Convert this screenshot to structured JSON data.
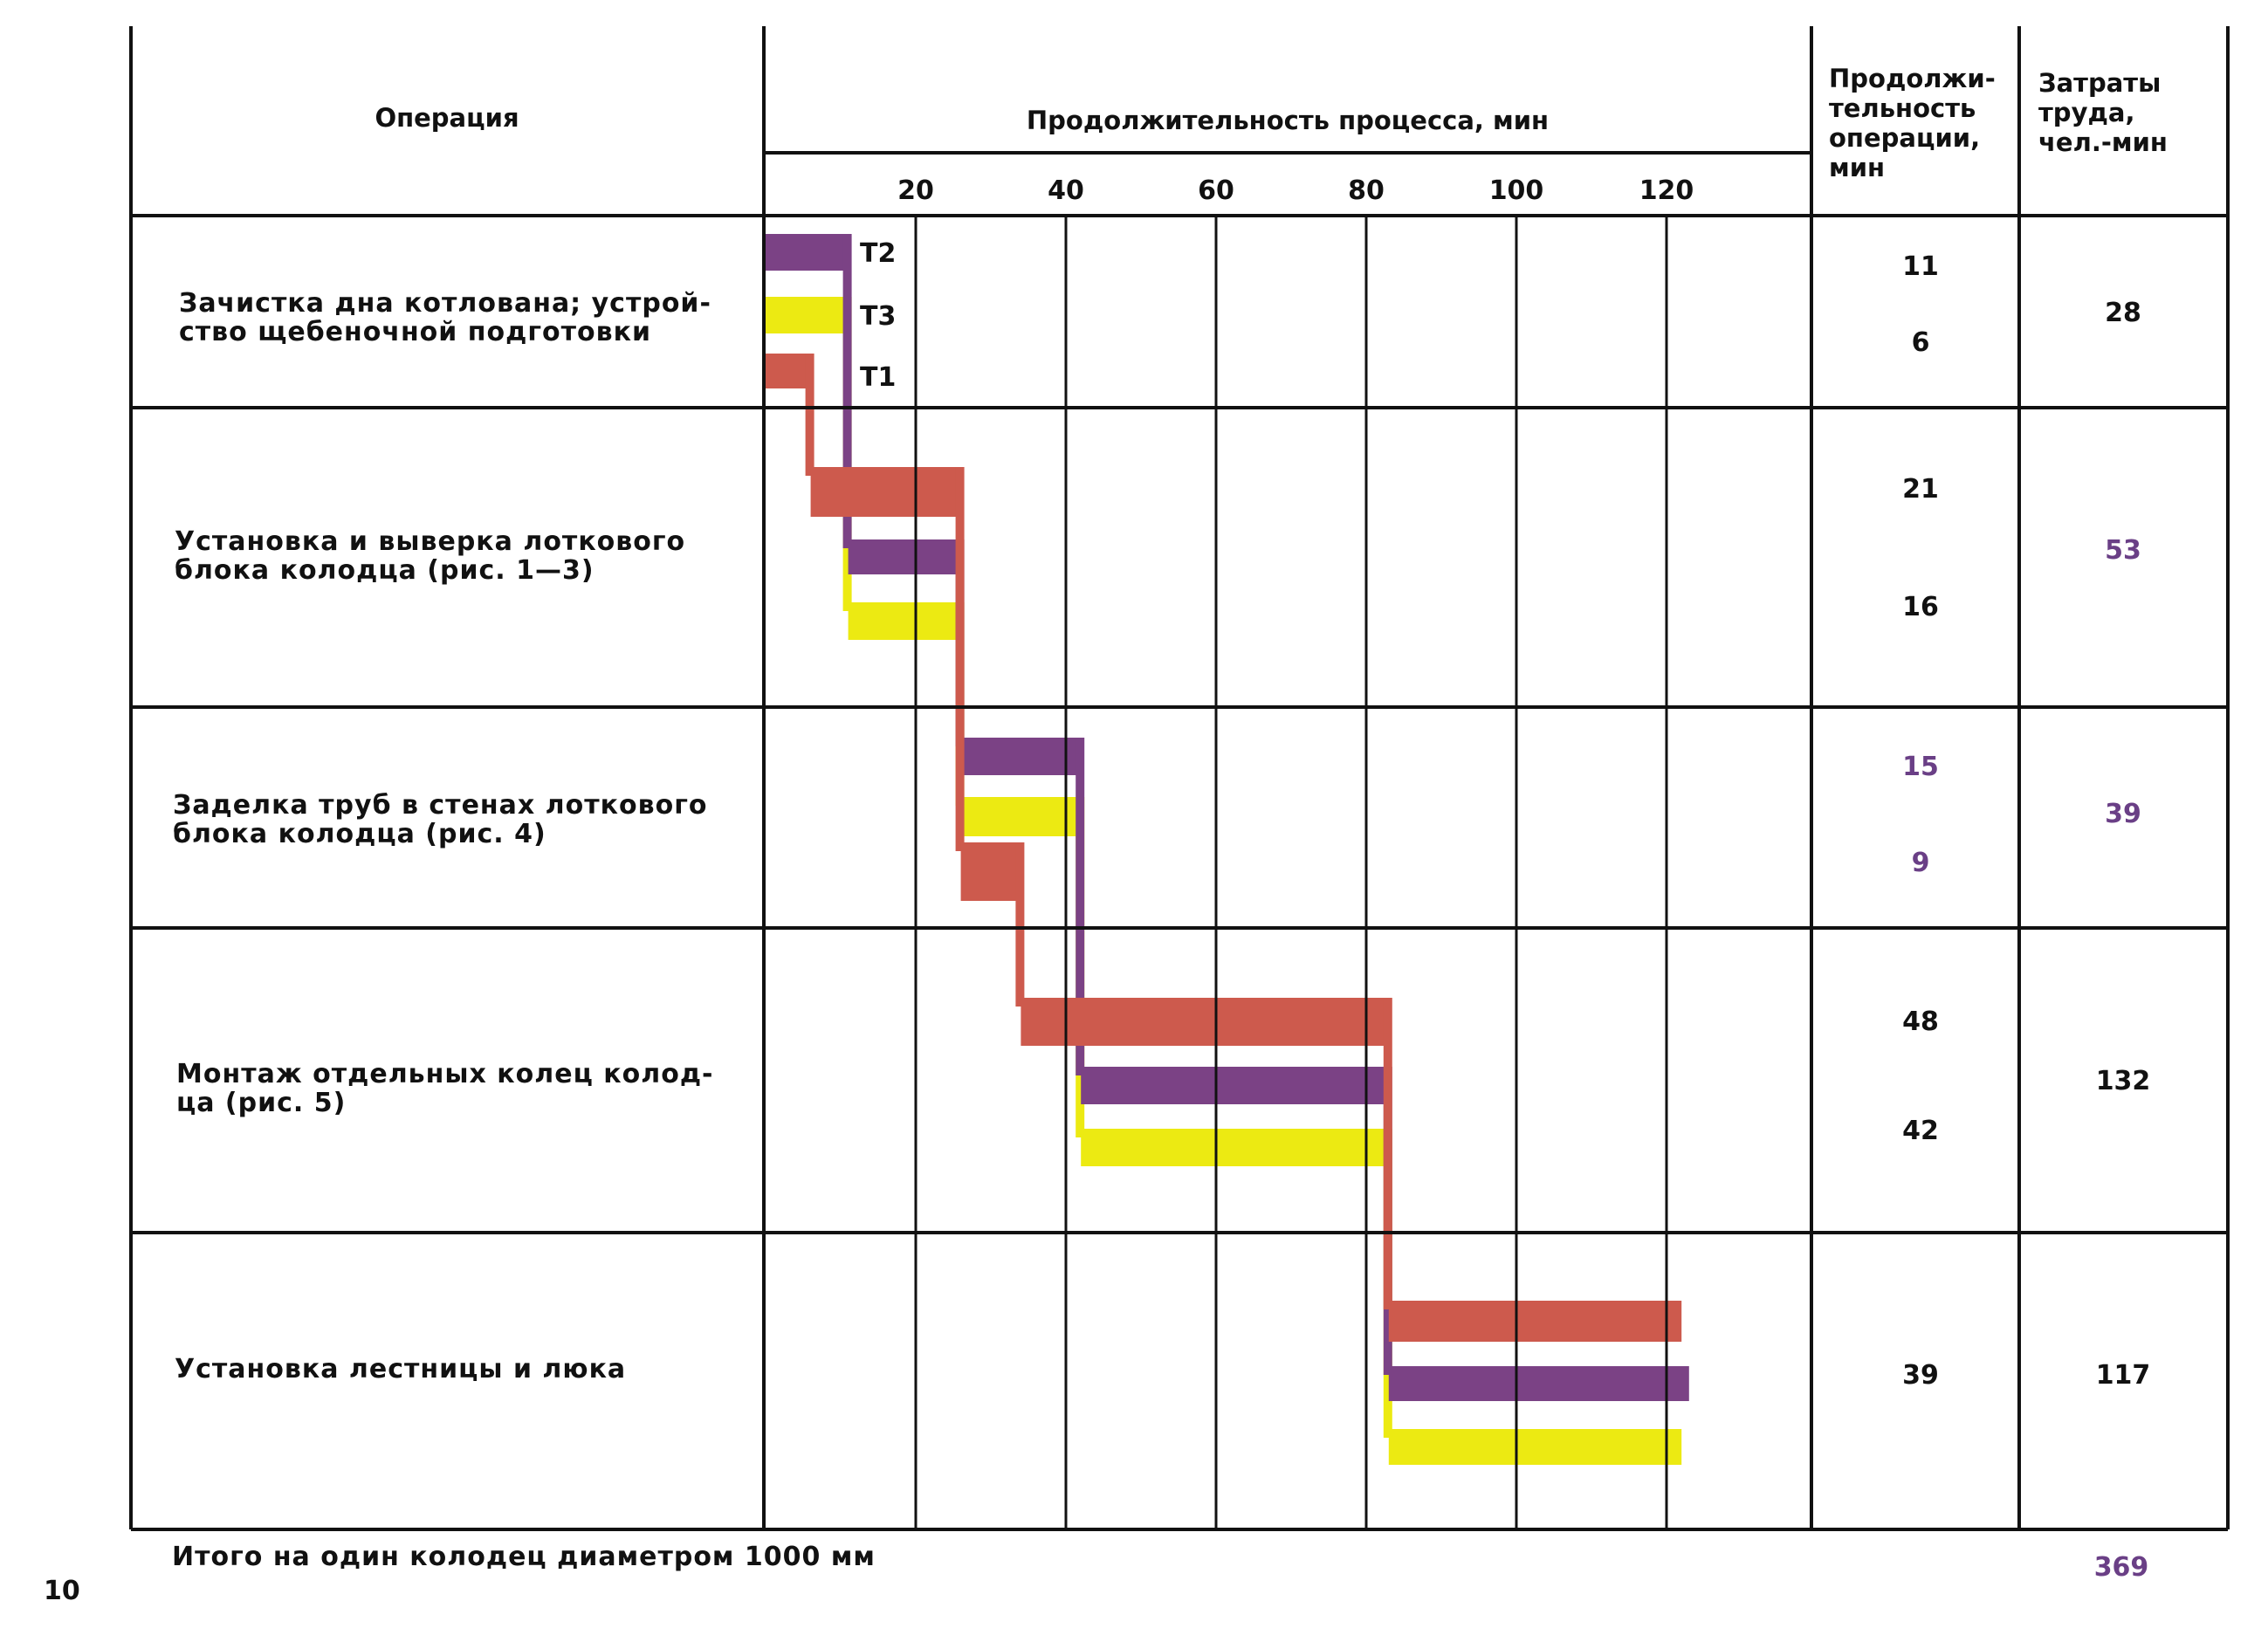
{
  "page_number": "10",
  "columns": {
    "operation": "Операция",
    "process_duration": "Продолжительность процесса, мин",
    "op_duration": [
      "Продолжи-",
      "тельность",
      "операции,",
      "мин"
    ],
    "labor": [
      "Затраты",
      "труда,",
      "чел.-мин"
    ]
  },
  "operations": [
    {
      "name": [
        "Зачистка дна котлована; устрой-",
        "ство щебеночной подготовки"
      ],
      "durations": [
        "11",
        "6"
      ],
      "labor": "28"
    },
    {
      "name": [
        "Установка и выверка лоткового",
        "блока колодца  (рис. 1—3)"
      ],
      "durations": [
        "21",
        "16"
      ],
      "labor": "53"
    },
    {
      "name": [
        "Заделка труб в стенах лоткового",
        "блока колодца (рис. 4)"
      ],
      "durations": [
        "15",
        "9"
      ],
      "labor": "39"
    },
    {
      "name": [
        "Монтаж отдельных колец колод-",
        "ца (рис. 5)"
      ],
      "durations": [
        "48",
        "42"
      ],
      "labor": "132"
    },
    {
      "name": [
        "Установка лестницы и люка"
      ],
      "durations": [
        "39"
      ],
      "labor": "117"
    }
  ],
  "total": {
    "label": "Итого на один колодец диаметром 1000 мм",
    "value": "369"
  },
  "chart_data": {
    "type": "gantt",
    "x_unit": "мин",
    "xlim": [
      0,
      140
    ],
    "xticks": [
      "20",
      "40",
      "60",
      "80",
      "100",
      "120"
    ],
    "xtick_values": [
      20,
      40,
      60,
      80,
      100,
      120
    ],
    "legend_labels": [
      "Т2",
      "Т3",
      "Т1"
    ],
    "series": [
      {
        "name": "Т1",
        "color": "#cd5a4d",
        "tasks": [
          {
            "op": 0,
            "start": 0,
            "end": 6
          },
          {
            "op": 1,
            "start": 6,
            "end": 26
          },
          {
            "op": 2,
            "start": 26,
            "end": 34
          },
          {
            "op": 3,
            "start": 34,
            "end": 83
          },
          {
            "op": 4,
            "start": 83,
            "end": 122
          }
        ]
      },
      {
        "name": "Т2",
        "color": "#7b4285",
        "tasks": [
          {
            "op": 0,
            "start": 0,
            "end": 11
          },
          {
            "op": 1,
            "start": 11,
            "end": 26
          },
          {
            "op": 2,
            "start": 26,
            "end": 42
          },
          {
            "op": 3,
            "start": 42,
            "end": 83
          },
          {
            "op": 4,
            "start": 83,
            "end": 123
          }
        ]
      },
      {
        "name": "Т3",
        "color": "#ecea12",
        "tasks": [
          {
            "op": 0,
            "start": 0,
            "end": 11
          },
          {
            "op": 1,
            "start": 11,
            "end": 26
          },
          {
            "op": 2,
            "start": 26,
            "end": 42
          },
          {
            "op": 3,
            "start": 42,
            "end": 83
          },
          {
            "op": 4,
            "start": 83,
            "end": 122
          }
        ]
      }
    ]
  }
}
